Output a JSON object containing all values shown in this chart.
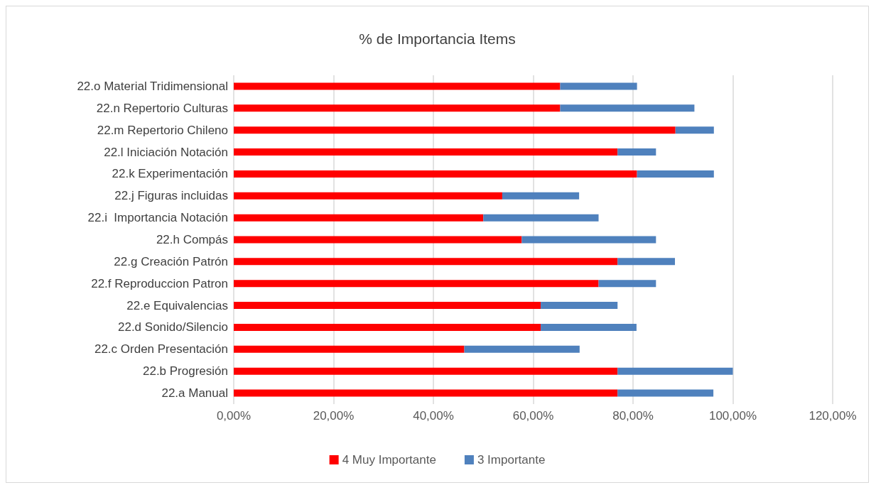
{
  "chart_data": {
    "type": "bar",
    "orientation": "horizontal",
    "stacked": true,
    "title": "% de Importancia Items",
    "categories": [
      "22.o Material Tridimensional",
      "22.n Repertorio Culturas",
      "22.m Repertorio Chileno",
      "22.l Iniciación Notación",
      "22.k Experimentación",
      "22.j Figuras incluidas",
      "22.i  Importancia Notación",
      "22.h Compás",
      "22.g Creación Patrón",
      "22.f Reproduccion Patron",
      "22.e Equivalencias",
      "22.d Sonido/Silencio",
      "22.c Orden Presentación",
      "22.b Progresión",
      "22.a Manual"
    ],
    "series": [
      {
        "name": "4 Muy Importante",
        "color": "#ff0000",
        "values": [
          65.4,
          65.4,
          88.5,
          76.9,
          80.8,
          53.8,
          50.0,
          57.7,
          76.9,
          73.1,
          61.5,
          61.5,
          46.2,
          76.9,
          76.9
        ]
      },
      {
        "name": "3 Importante",
        "color": "#4f81bd",
        "values": [
          15.4,
          26.9,
          7.7,
          7.7,
          15.4,
          15.4,
          23.1,
          26.9,
          11.5,
          11.5,
          15.4,
          19.2,
          23.1,
          23.1,
          19.2
        ]
      }
    ],
    "xlim": [
      0,
      120
    ],
    "xticks": [
      {
        "value": 0,
        "label": "0,00%"
      },
      {
        "value": 20,
        "label": "20,00%"
      },
      {
        "value": 40,
        "label": "40,00%"
      },
      {
        "value": 60,
        "label": "60,00%"
      },
      {
        "value": 80,
        "label": "80,00%"
      },
      {
        "value": 100,
        "label": "100,00%"
      },
      {
        "value": 120,
        "label": "120,00%"
      }
    ],
    "grid": "x",
    "legend": "bottom"
  }
}
